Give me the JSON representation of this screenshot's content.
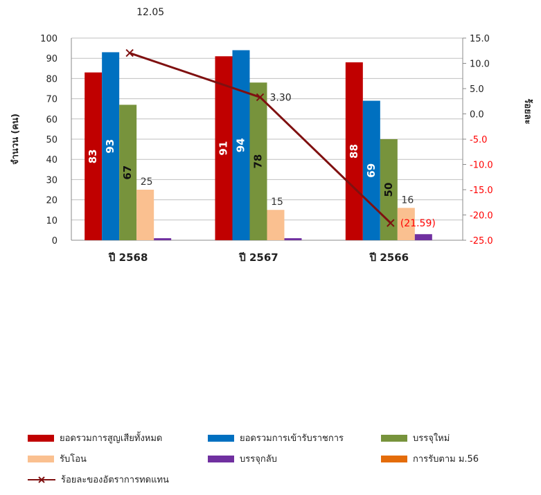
{
  "chart_data": {
    "type": "bar",
    "categories": [
      "ปี 2568",
      "ปี 2567",
      "ปี 2566"
    ],
    "ylabel_left": "จำนวน (คน)",
    "ylabel_right": "ร้อยละ",
    "ylim_left": [
      0,
      100
    ],
    "yticks_left": [
      "0",
      "10",
      "20",
      "30",
      "40",
      "50",
      "60",
      "70",
      "80",
      "90",
      "100"
    ],
    "ylim_right": [
      -25,
      15
    ],
    "yticks_right": [
      "15.0",
      "10.0",
      "5.0",
      "0.0",
      "-5.0",
      "-10.0",
      "-15.0",
      "-20.0",
      "-25.0"
    ],
    "grid": true,
    "legend_position": "bottom",
    "series": [
      {
        "name": "ยอดรวมการสูญเสียทั้งหมด",
        "color": "#C00000",
        "values": [
          83,
          91,
          88
        ],
        "labels": [
          "83",
          "91",
          "88"
        ],
        "label_style": "inside-vertical-white"
      },
      {
        "name": "ยอดรวมการเข้ารับราชการ",
        "color": "#0070C0",
        "values": [
          93,
          94,
          69
        ],
        "labels": [
          "93",
          "94",
          "69"
        ],
        "label_style": "inside-vertical-white"
      },
      {
        "name": "บรรจุใหม่",
        "color": "#77933C",
        "values": [
          67,
          78,
          50
        ],
        "labels": [
          "67",
          "78",
          "50"
        ],
        "label_style": "inside-vertical-dark"
      },
      {
        "name": "รับโอน",
        "color": "#FAC090",
        "values": [
          25,
          15,
          16
        ],
        "labels": [
          "25",
          "15",
          "16"
        ],
        "label_style": "above"
      },
      {
        "name": "บรรจุกลับ",
        "color": "#7030A0",
        "values": [
          1,
          1,
          3
        ],
        "labels": [],
        "label_style": "none"
      },
      {
        "name": "การรับตาม ม.56",
        "color": "#E46C0A",
        "values": [
          0,
          0,
          0
        ],
        "labels": [],
        "label_style": "none"
      }
    ],
    "line_series": {
      "name": "ร้อยละของอัตราการทดแทน",
      "color": "#7F1010",
      "axis": "right",
      "values": [
        12.05,
        3.3,
        -21.59
      ],
      "labels": [
        "12.05",
        "3.30",
        "(21.59)"
      ],
      "label_colors": [
        "#222222",
        "#222222",
        "#FF0000"
      ]
    },
    "right_negative_tick_color": "#FF0000"
  }
}
